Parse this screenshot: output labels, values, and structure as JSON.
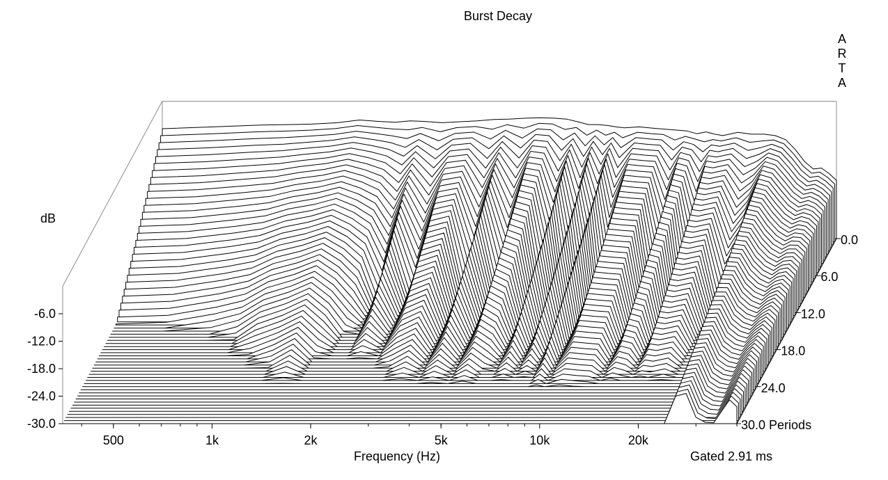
{
  "chart_data": {
    "type": "waterfall",
    "title": "Burst Decay",
    "watermark": "ARTA",
    "xlabel": "Frequency (Hz)",
    "zlabel": "dB",
    "footer_note": "Gated 2.91 ms",
    "x_scale": "log",
    "x_range_hz": [
      350,
      40000
    ],
    "x_ticks": [
      {
        "value": 500,
        "label": "500"
      },
      {
        "value": 1000,
        "label": "1k"
      },
      {
        "value": 2000,
        "label": "2k"
      },
      {
        "value": 5000,
        "label": "5k"
      },
      {
        "value": 10000,
        "label": "10k"
      },
      {
        "value": 20000,
        "label": "20k"
      }
    ],
    "z_range_db": [
      -30,
      0
    ],
    "z_ticks": [
      {
        "value": -6,
        "label": "-6.0"
      },
      {
        "value": -12,
        "label": "-12.0"
      },
      {
        "value": -18,
        "label": "-18.0"
      },
      {
        "value": -24,
        "label": "-24.0"
      },
      {
        "value": -30,
        "label": "-30.0"
      }
    ],
    "y_range_periods": [
      0,
      30
    ],
    "y_ticks": [
      {
        "value": 0,
        "label": "0.0"
      },
      {
        "value": 6,
        "label": "6.0"
      },
      {
        "value": 12,
        "label": "12.0"
      },
      {
        "value": 18,
        "label": "18.0"
      },
      {
        "value": 24,
        "label": "24.0"
      },
      {
        "value": 30,
        "label": "30.0 Periods"
      }
    ],
    "periods_step": 0.5,
    "frequencies_hz": [
      350,
      500,
      700,
      850,
      1000,
      1200,
      1400,
      1600,
      1800,
      2000,
      2200,
      2500,
      2800,
      3200,
      3600,
      4000,
      4500,
      5000,
      5500,
      6000,
      6500,
      7000,
      7500,
      8000,
      8500,
      9000,
      10000,
      11000,
      12000,
      13000,
      14000,
      15000,
      16000,
      17000,
      18000,
      20000,
      22000,
      24000,
      26000,
      28000,
      30000,
      32000,
      34000,
      36000,
      38000,
      40000
    ],
    "initial_response_db": [
      -6,
      -5.6,
      -5.2,
      -5.1,
      -5,
      -4.7,
      -4.1,
      -4.4,
      -4.6,
      -4.3,
      -4.4,
      -4.7,
      -4.5,
      -4.3,
      -4,
      -3.9,
      -3.7,
      -3.6,
      -3.7,
      -3.9,
      -4.5,
      -5.1,
      -5.1,
      -5.3,
      -5.6,
      -5.8,
      -5.6,
      -5.9,
      -6.1,
      -6.3,
      -6.5,
      -7.1,
      -6.7,
      -7.2,
      -7.5,
      -6.8,
      -7.2,
      -7.2,
      -7.5,
      -8.4,
      -10.6,
      -13.2,
      -14.8,
      -14.6,
      -15.8,
      -17.3
    ],
    "decay_db_per_period": [
      1.7,
      1.7,
      1.6,
      1.5,
      1.3,
      1.2,
      1.1,
      1.3,
      1.6,
      2.5,
      1.3,
      2.6,
      1.2,
      1.1,
      2.9,
      1.1,
      3.0,
      1.1,
      1.2,
      3.2,
      1.1,
      3.3,
      1.1,
      2.9,
      1,
      3,
      1,
      1,
      1,
      3,
      1,
      1,
      3,
      1,
      1,
      1,
      2.2,
      1.6,
      0.55,
      0.5,
      0.6,
      0.55,
      0.5,
      0.42,
      0.3,
      0.3
    ]
  }
}
